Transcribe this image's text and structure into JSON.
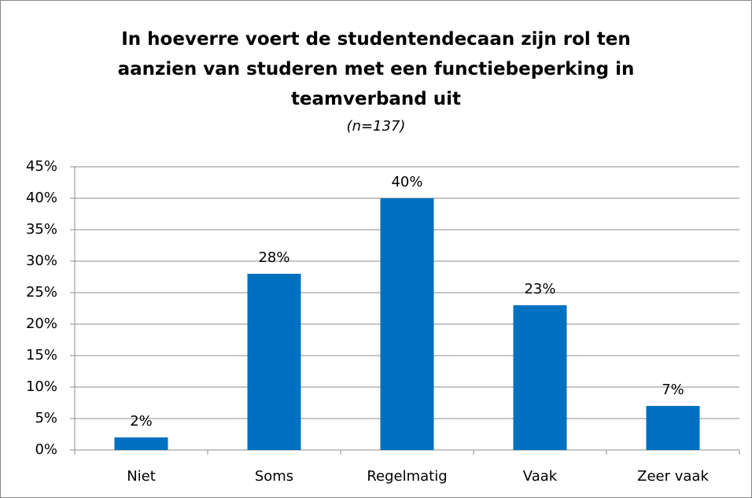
{
  "chart_data": {
    "type": "bar",
    "title": "In hoeverre voert de studentendecaan zijn rol ten aanzien van studeren met een functiebeperking in teamverband uit",
    "subtitle": "(n=137)",
    "categories": [
      "Niet",
      "Soms",
      "Regelmatig",
      "Vaak",
      "Zeer vaak"
    ],
    "values": [
      2,
      28,
      40,
      23,
      7
    ],
    "value_labels": [
      "2%",
      "28%",
      "40%",
      "23%",
      "7%"
    ],
    "color": "#0070c0",
    "ylim": [
      0,
      45
    ],
    "yticks": [
      {
        "value": 0,
        "label": "0%"
      },
      {
        "value": 5,
        "label": "5%"
      },
      {
        "value": 10,
        "label": "10%"
      },
      {
        "value": 15,
        "label": "15%"
      },
      {
        "value": 20,
        "label": "20%"
      },
      {
        "value": 25,
        "label": "25%"
      },
      {
        "value": 30,
        "label": "30%"
      },
      {
        "value": 35,
        "label": "35%"
      },
      {
        "value": 40,
        "label": "40%"
      },
      {
        "value": 45,
        "label": "45%"
      }
    ],
    "grid": true
  }
}
